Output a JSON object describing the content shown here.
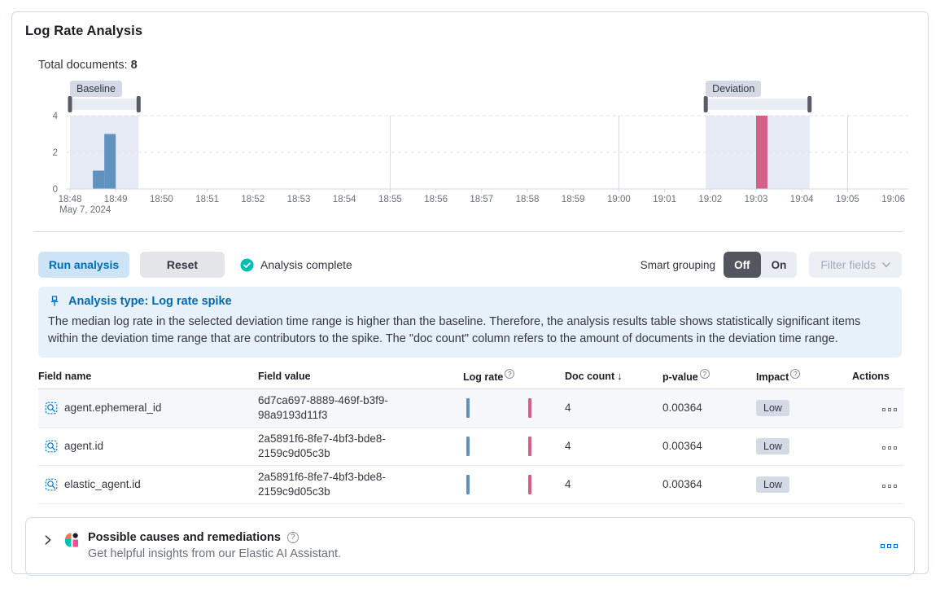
{
  "header": {
    "title": "Log Rate Analysis",
    "total_documents_label": "Total documents:",
    "total_documents_value": "8"
  },
  "chart_data": {
    "type": "bar",
    "title": "Document count histogram",
    "ticks": [
      "18:48",
      "18:49",
      "18:50",
      "18:51",
      "18:52",
      "18:53",
      "18:54",
      "18:55",
      "18:56",
      "18:57",
      "18:58",
      "18:59",
      "19:00",
      "19:01",
      "19:02",
      "19:03",
      "19:04",
      "19:05",
      "19:06"
    ],
    "date_label": "May 7, 2024",
    "y_ticks": [
      0,
      2,
      4
    ],
    "ylim": [
      0,
      4
    ],
    "baseline": {
      "label": "Baseline",
      "from_min": 0,
      "to_min": 1.5
    },
    "deviation": {
      "label": "Deviation",
      "from_min": 13.9,
      "to_min": 16.17
    },
    "bars": [
      {
        "x_min": 0.5,
        "width_min": 0.25,
        "value": 1,
        "series": "baseline",
        "time": "18:48:30"
      },
      {
        "x_min": 0.75,
        "width_min": 0.25,
        "value": 3,
        "series": "baseline",
        "time": "18:48:45"
      },
      {
        "x_min": 15.0,
        "width_min": 0.25,
        "value": 4,
        "series": "deviation",
        "time": "19:03:00"
      }
    ],
    "colors": {
      "baseline": "#6092c0",
      "deviation": "#d36086"
    },
    "vertical_gridlines_min": [
      7,
      12,
      17
    ],
    "legend_position": "none",
    "grid": true
  },
  "toolbar": {
    "run_button": "Run analysis",
    "reset_button": "Reset",
    "status": "Analysis complete",
    "smart_grouping_label": "Smart grouping",
    "toggle_off": "Off",
    "toggle_on": "On",
    "filter_fields": "Filter fields"
  },
  "callout": {
    "title": "Analysis type: Log rate spike",
    "body": "The median log rate in the selected deviation time range is higher than the baseline. Therefore, the analysis results table shows statistically significant items within the deviation time range that are contributors to the spike. The \"doc count\" column refers to the amount of documents in the deviation time range."
  },
  "table": {
    "columns": [
      {
        "label": "Field name"
      },
      {
        "label": "Field value"
      },
      {
        "label": "Log rate",
        "help": true
      },
      {
        "label": "Doc count",
        "sort": "desc",
        "sort_glyph": "↓"
      },
      {
        "label": "p-value",
        "help": true
      },
      {
        "label": "Impact",
        "help": true
      },
      {
        "label": "Actions"
      }
    ],
    "rows": [
      {
        "field_name": "agent.ephemeral_id",
        "field_value": "6d7ca697-8889-469f-b3f9-98a9193d11f3",
        "doc_count": "4",
        "p_value": "0.00364",
        "impact": "Low"
      },
      {
        "field_name": "agent.id",
        "field_value": "2a5891f6-8fe7-4bf3-bde8-2159c9d05c3b",
        "doc_count": "4",
        "p_value": "0.00364",
        "impact": "Low"
      },
      {
        "field_name": "elastic_agent.id",
        "field_value": "2a5891f6-8fe7-4bf3-bde8-2159c9d05c3b",
        "doc_count": "4",
        "p_value": "0.00364",
        "impact": "Low"
      }
    ]
  },
  "footer_panel": {
    "title": "Possible causes and remediations",
    "subtitle": "Get helpful insights from our Elastic AI Assistant."
  },
  "accent_colors": {
    "primary_blue": "#006bb8",
    "success_teal": "#00bfb3",
    "badge_gray": "#d3dae6",
    "callout_bg": "#e6f1fa"
  },
  "icons": {
    "status": "check-in-circle",
    "callout": "push-pin",
    "field": "search-in-square",
    "row_actions": "three-boxes-ellipsis",
    "footer_logo": "elastic-ai-assistant",
    "footer_expand": "chevron-right",
    "help": "question-in-circle"
  }
}
